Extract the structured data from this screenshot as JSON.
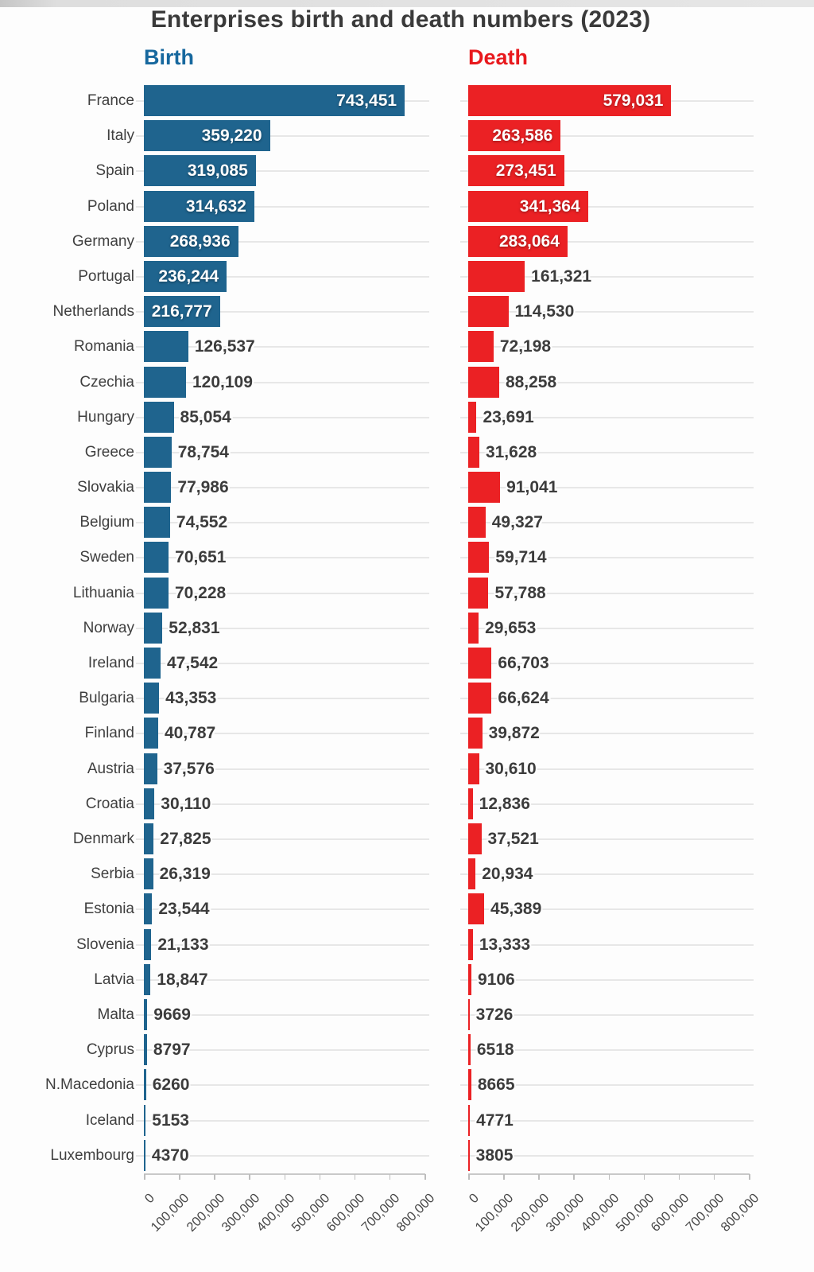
{
  "title": "Enterprises birth and death numbers (2023)",
  "panel_headers": {
    "birth": "Birth",
    "death": "Death"
  },
  "colors": {
    "birth_bar": "#1f648e",
    "birth_header": "#17689e",
    "death_bar": "#eb2124",
    "death_header": "#e8191d",
    "title_text": "#3a3a3a",
    "gridline": "#e7e7e7"
  },
  "chart_data": {
    "type": "bar",
    "orientation": "horizontal",
    "title": "Enterprises birth and death numbers (2023)",
    "categories": [
      "France",
      "Italy",
      "Spain",
      "Poland",
      "Germany",
      "Portugal",
      "Netherlands",
      "Romania",
      "Czechia",
      "Hungary",
      "Greece",
      "Slovakia",
      "Belgium",
      "Sweden",
      "Lithuania",
      "Norway",
      "Ireland",
      "Bulgaria",
      "Finland",
      "Austria",
      "Croatia",
      "Denmark",
      "Serbia",
      "Estonia",
      "Slovenia",
      "Latvia",
      "Malta",
      "Cyprus",
      "N.Macedonia",
      "Iceland",
      "Luxembourg"
    ],
    "series": [
      {
        "name": "Birth",
        "color": "#1f648e",
        "values": [
          743451,
          359220,
          319085,
          314632,
          268936,
          236244,
          216777,
          126537,
          120109,
          85054,
          78754,
          77986,
          74552,
          70651,
          70228,
          52831,
          47542,
          43353,
          40787,
          37576,
          30110,
          27825,
          26319,
          23544,
          21133,
          18847,
          9669,
          8797,
          6260,
          5153,
          4370
        ]
      },
      {
        "name": "Death",
        "color": "#eb2124",
        "values": [
          579031,
          263586,
          273451,
          341364,
          283064,
          161321,
          114530,
          72198,
          88258,
          23691,
          31628,
          91041,
          49327,
          59714,
          57788,
          29653,
          66703,
          66624,
          39872,
          30610,
          12836,
          37521,
          20934,
          45389,
          13333,
          9106,
          3726,
          6518,
          8665,
          4771,
          3805
        ]
      }
    ],
    "xlim": [
      0,
      800000
    ],
    "x_ticks": [
      0,
      100000,
      200000,
      300000,
      400000,
      500000,
      600000,
      700000,
      800000
    ],
    "x_tick_labels": [
      "0",
      "100,000",
      "200,000",
      "300,000",
      "400,000",
      "500,000",
      "600,000",
      "700,000",
      "800,000"
    ],
    "grid": "light horizontal line per category row",
    "value_labels": "bold; white inside bar when bar is wide enough, dark gray outside otherwise; comma separators only for values >= 10,000",
    "legend_position": "colored panel headers above each chart"
  }
}
